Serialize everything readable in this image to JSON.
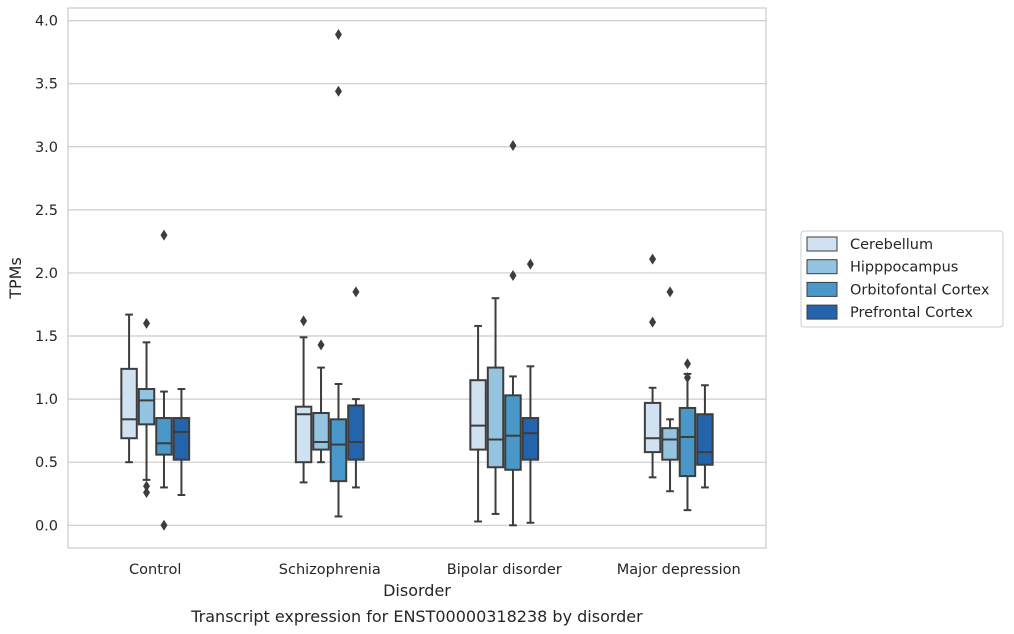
{
  "chart_data": {
    "type": "boxplot",
    "caption": "Transcript expression for ENST00000318238 by disorder",
    "xlabel": "Disorder",
    "ylabel": "TPMs",
    "ylim": [
      -0.18,
      4.1
    ],
    "yticks": [
      "0.0",
      "0.5",
      "1.0",
      "1.5",
      "2.0",
      "2.5",
      "3.0",
      "3.5",
      "4.0"
    ],
    "categories": [
      "Control",
      "Schizophrenia",
      "Bipolar disorder",
      "Major depression"
    ],
    "grid": true,
    "legend_position": "right",
    "series": [
      {
        "name": "Cerebellum",
        "color": "#d0e1f2",
        "boxes": [
          {
            "whislo": 0.5,
            "q1": 0.69,
            "med": 0.84,
            "q3": 1.24,
            "whishi": 1.67,
            "fliers": []
          },
          {
            "whislo": 0.34,
            "q1": 0.5,
            "med": 0.88,
            "q3": 0.94,
            "whishi": 1.49,
            "fliers": [
              1.62
            ]
          },
          {
            "whislo": 0.03,
            "q1": 0.6,
            "med": 0.79,
            "q3": 1.15,
            "whishi": 1.58,
            "fliers": []
          },
          {
            "whislo": 0.38,
            "q1": 0.58,
            "med": 0.69,
            "q3": 0.97,
            "whishi": 1.09,
            "fliers": [
              1.61,
              2.11
            ]
          }
        ]
      },
      {
        "name": "Hipppocampus",
        "color": "#94c4df",
        "boxes": [
          {
            "whislo": 0.36,
            "q1": 0.8,
            "med": 0.99,
            "q3": 1.08,
            "whishi": 1.45,
            "fliers": [
              1.6,
              0.31,
              0.26
            ]
          },
          {
            "whislo": 0.5,
            "q1": 0.6,
            "med": 0.66,
            "q3": 0.89,
            "whishi": 1.25,
            "fliers": [
              1.43
            ]
          },
          {
            "whislo": 0.09,
            "q1": 0.46,
            "med": 0.68,
            "q3": 1.25,
            "whishi": 1.8,
            "fliers": []
          },
          {
            "whislo": 0.27,
            "q1": 0.52,
            "med": 0.68,
            "q3": 0.77,
            "whishi": 0.84,
            "fliers": [
              1.85
            ]
          }
        ]
      },
      {
        "name": "Orbitofontal Cortex",
        "color": "#4a98c9",
        "boxes": [
          {
            "whislo": 0.3,
            "q1": 0.56,
            "med": 0.65,
            "q3": 0.85,
            "whishi": 1.06,
            "fliers": [
              2.3,
              0.0
            ]
          },
          {
            "whislo": 0.07,
            "q1": 0.35,
            "med": 0.64,
            "q3": 0.84,
            "whishi": 1.12,
            "fliers": [
              3.89,
              3.44
            ]
          },
          {
            "whislo": 0.0,
            "q1": 0.44,
            "med": 0.71,
            "q3": 1.03,
            "whishi": 1.18,
            "fliers": [
              3.01,
              1.98
            ]
          },
          {
            "whislo": 0.12,
            "q1": 0.39,
            "med": 0.7,
            "q3": 0.93,
            "whishi": 1.2,
            "fliers": [
              1.28,
              1.17
            ]
          }
        ]
      },
      {
        "name": "Prefrontal Cortex",
        "color": "#2464ab",
        "boxes": [
          {
            "whislo": 0.24,
            "q1": 0.52,
            "med": 0.74,
            "q3": 0.85,
            "whishi": 1.08,
            "fliers": []
          },
          {
            "whislo": 0.3,
            "q1": 0.52,
            "med": 0.66,
            "q3": 0.95,
            "whishi": 1.0,
            "fliers": [
              1.85
            ]
          },
          {
            "whislo": 0.02,
            "q1": 0.52,
            "med": 0.73,
            "q3": 0.85,
            "whishi": 1.26,
            "fliers": [
              2.07
            ]
          },
          {
            "whislo": 0.3,
            "q1": 0.48,
            "med": 0.58,
            "q3": 0.88,
            "whishi": 1.11,
            "fliers": []
          }
        ]
      }
    ]
  }
}
